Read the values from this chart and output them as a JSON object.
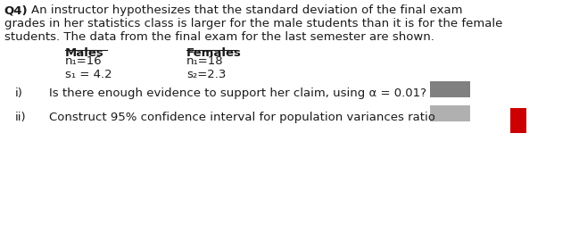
{
  "bg_color": "#ffffff",
  "text_color": "#1a1a1a",
  "title_bold": "Q4)",
  "title_line1": "An instructor hypothesizes that the standard deviation of the final exam",
  "title_line2": "grades in her statistics class is larger for the male students than it is for the female",
  "title_line3": "students. The data from the final exam for the last semester are shown.",
  "males_label": "Males",
  "females_label": "Females",
  "males_n": "n₁=16",
  "females_n": "n₁=18",
  "males_s": "s₁ = 4.2",
  "females_s": "s₂=2.3",
  "question_i": "i)",
  "question_i_text": "Is there enough evidence to support her claim, using α = 0.01?",
  "question_ii": "ii)",
  "question_ii_text": "Construct 95% confidence interval for population variances ratio",
  "box1_color": "#808080",
  "box2_color": "#b0b0b0",
  "red_box_color": "#cc0000"
}
